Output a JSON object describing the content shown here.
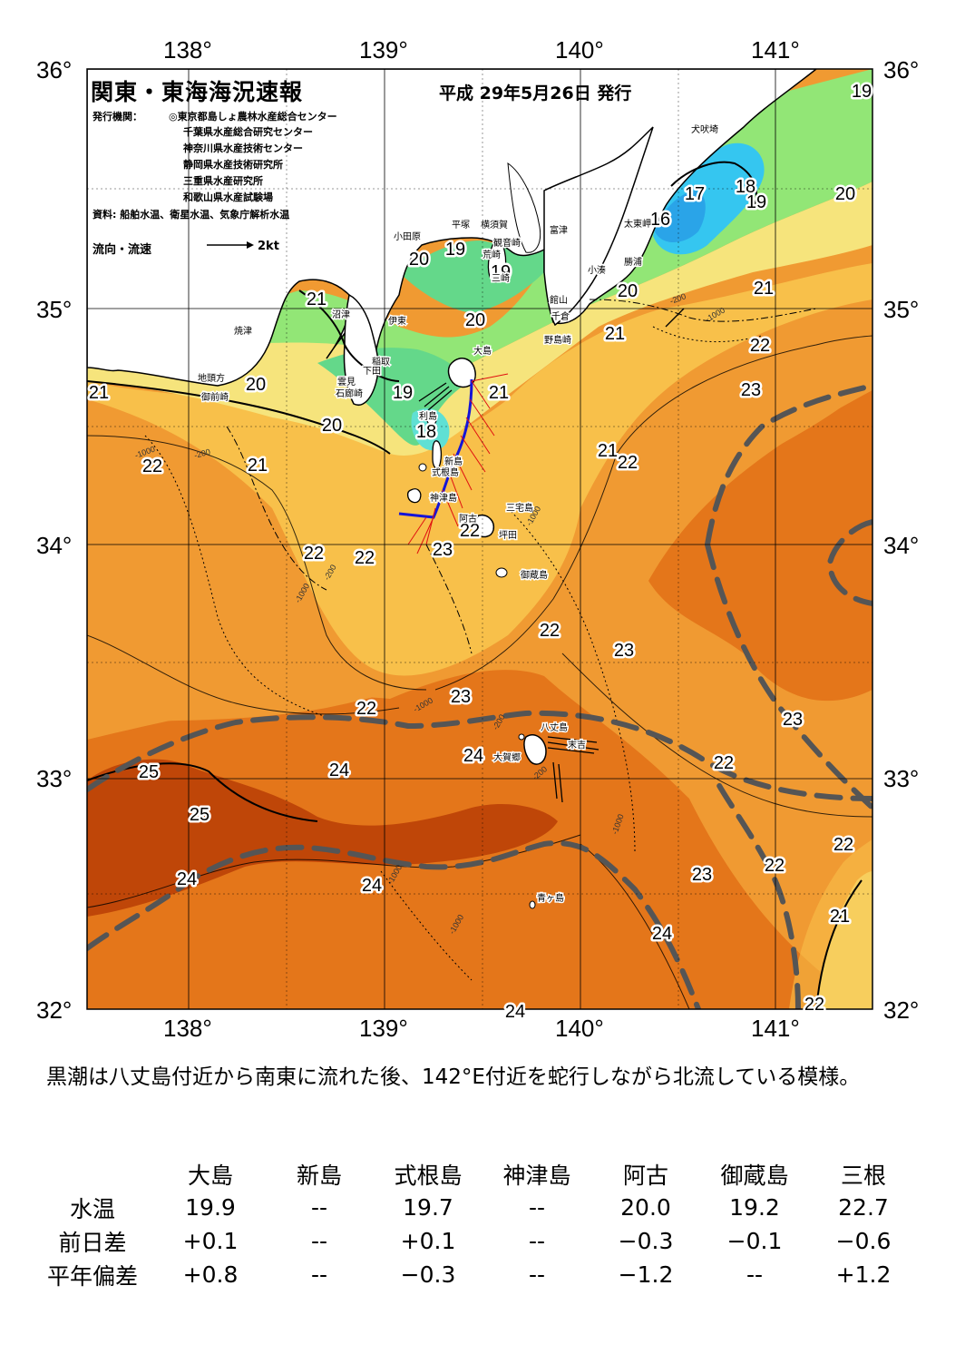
{
  "map": {
    "title": "関東・東海海況速報",
    "issue_date": "平成 29年5月26日 発行",
    "issuers_label": "発行機関：",
    "issuers": [
      "◎東京都島しょ農林水産総合センター",
      "千葉県水産総合研究センター",
      "神奈川県水産技術センター",
      "静岡県水産技術研究所",
      "三重県水産研究所",
      "和歌山県水産試験場"
    ],
    "source": "資料: 船舶水温、衛星水温、気象庁解析水温",
    "flow_legend": "流向・流速",
    "flow_scale": "2kt",
    "lon_labels": [
      "138°",
      "139°",
      "140°",
      "141°"
    ],
    "lat_labels": [
      "36°",
      "35°",
      "34°",
      "33°",
      "32°"
    ],
    "places": {
      "inubosaki": "犬吠埼",
      "taitomisaki": "太東岬",
      "katsuura": "勝浦",
      "kominato": "小湊",
      "tomitsu": "富津",
      "kannonzaki": "観音崎",
      "yokosuka": "横須賀",
      "hiratsuka": "平塚",
      "odawara": "小田原",
      "araisaki": "荒崎",
      "misaki": "三崎",
      "tateyama": "館山",
      "chikura": "千倉",
      "nojimazaki": "野島崎",
      "numazu": "沼津",
      "ito": "伊東",
      "yaizu": "焼津",
      "inatori": "稲取",
      "shimoda": "下田",
      "kumomi": "雲見",
      "irozaki": "石廊崎",
      "jitogata": "地頭方",
      "omaezaki": "御前崎",
      "oshima": "大島",
      "toshima": "利島",
      "niijima": "新島",
      "shikinejima": "式根島",
      "kozushima": "神津島",
      "miyakejima": "三宅島",
      "ako": "阿古",
      "tsubota": "坪田",
      "mikurajima": "御蔵島",
      "hachijojima": "八丈島",
      "okago": "大賀郷",
      "sueyoshi": "末吉",
      "aogashima": "青ヶ島"
    },
    "isotherm_labels": [
      "19",
      "17",
      "18",
      "19",
      "20",
      "16",
      "21",
      "20",
      "21",
      "22",
      "23",
      "20",
      "19",
      "19",
      "20",
      "21",
      "21",
      "20",
      "19",
      "18",
      "20",
      "21",
      "22",
      "21",
      "22",
      "22",
      "23",
      "22",
      "21",
      "22",
      "22",
      "23",
      "23",
      "22",
      "23",
      "24",
      "24",
      "25",
      "25",
      "24",
      "24",
      "23",
      "22",
      "22",
      "22",
      "21",
      "24",
      "22",
      "24"
    ],
    "depth_labels": [
      "-200",
      "-1000"
    ],
    "colors": {
      "temp_16": "#2aa4e8",
      "temp_17": "#35c6f0",
      "temp_18": "#5fe0d4",
      "temp_19": "#64d88a",
      "temp_20": "#92e676",
      "temp_21": "#f6e47c",
      "temp_22": "#f8c04a",
      "temp_23": "#f09a32",
      "temp_24": "#e4761a",
      "temp_25": "#bf4608",
      "land": "#ffffff",
      "kuroshio_axis": "#555555",
      "ship_track": "#1414d8",
      "current_vectors": "#e01010"
    }
  },
  "summary": "黒潮は八丈島付近から南東に流れた後、142°E付近を蛇行しながら北流している模様。",
  "table": {
    "columns": [
      "大島",
      "新島",
      "式根島",
      "神津島",
      "阿古",
      "御蔵島",
      "三根"
    ],
    "rows": [
      {
        "label": "水温",
        "values": [
          "19.9",
          "--",
          "19.7",
          "--",
          "20.0",
          "19.2",
          "22.7"
        ]
      },
      {
        "label": "前日差",
        "values": [
          "+0.1",
          "--",
          "+0.1",
          "--",
          "−0.3",
          "−0.1",
          "−0.6"
        ]
      },
      {
        "label": "平年偏差",
        "values": [
          "+0.8",
          "--",
          "−0.3",
          "--",
          "−1.2",
          "--",
          "+1.2"
        ]
      }
    ]
  }
}
